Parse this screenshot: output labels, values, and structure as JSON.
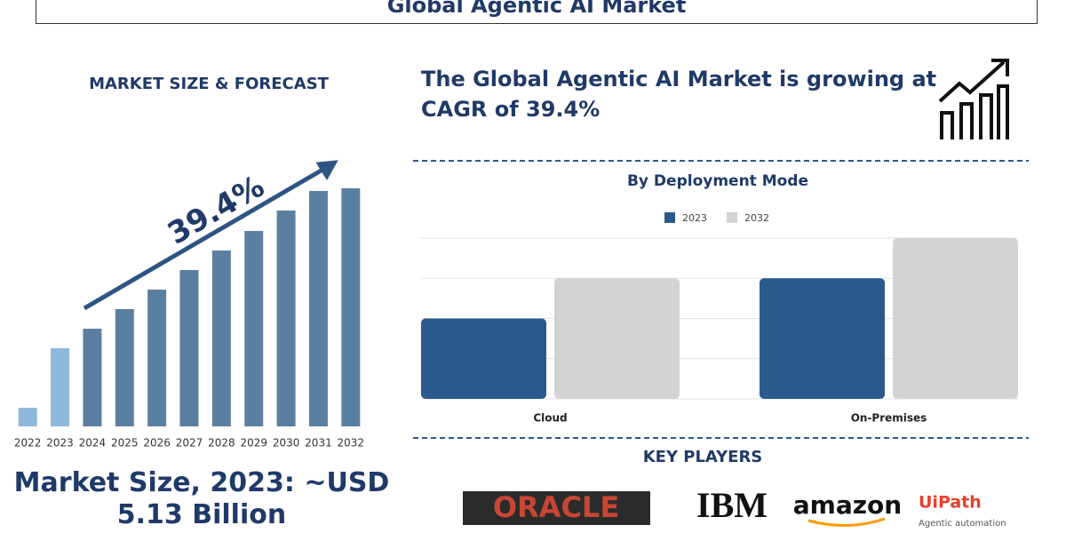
{
  "header": {
    "title": "Global Agentic AI Market"
  },
  "left_panel": {
    "heading": "MARKET SIZE & FORECAST",
    "market_size": "Market Size, 2023: ~USD 5.13 Billion"
  },
  "right_panel": {
    "headline": "The Global Agentic AI Market is growing at CAGR of 39.4%",
    "key_players_heading": "KEY PLAYERS",
    "key_players": [
      "ORACLE",
      "IBM",
      "amazon",
      "UiPath"
    ],
    "uipath_tagline": "Agentic automation"
  },
  "chart_data": [
    {
      "type": "bar",
      "annotation": "39.4%",
      "categories": [
        "2022",
        "2023",
        "2024",
        "2025",
        "2026",
        "2027",
        "2028",
        "2029",
        "2030",
        "2031",
        "2032"
      ],
      "values": [
        21,
        88,
        110,
        132,
        154,
        176,
        198,
        220,
        243,
        265,
        268
      ],
      "colors": [
        "#8fb8dd",
        "#8fb8dd",
        "#5b7fa0",
        "#5b7fa0",
        "#5b7fa0",
        "#5b7fa0",
        "#5b7fa0",
        "#5b7fa0",
        "#5b7fa0",
        "#5b7fa0",
        "#5b7fa0"
      ],
      "ylim": [
        0,
        270
      ]
    },
    {
      "type": "grouped_bar",
      "title": "By Deployment Mode",
      "categories": [
        "Cloud",
        "On-Premises"
      ],
      "series": [
        {
          "name": "2023",
          "color": "#2a5a8c",
          "values": [
            2,
            3
          ]
        },
        {
          "name": "2032",
          "color": "#d3d3d3",
          "values": [
            3,
            4
          ]
        }
      ],
      "ylim": [
        0,
        4
      ],
      "yticks": [
        0,
        1,
        2,
        3,
        4
      ],
      "grid": true
    }
  ]
}
